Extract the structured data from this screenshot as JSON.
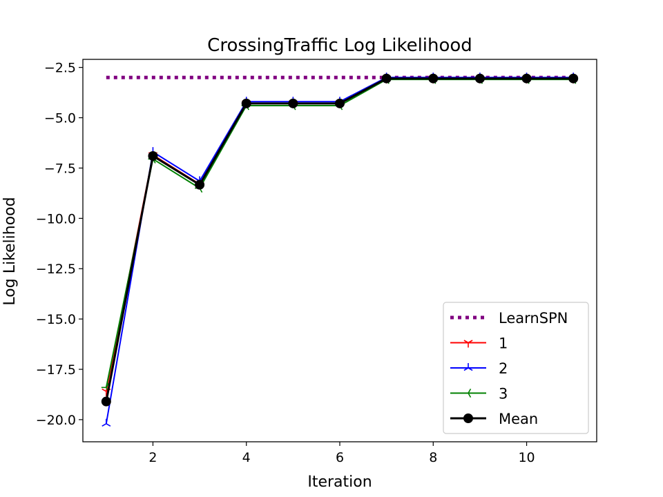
{
  "chart_data": {
    "type": "line",
    "title": "CrossingTraffic Log Likelihood",
    "xlabel": "Iteration",
    "ylabel": "Log Likelihood",
    "xlim": [
      0.5,
      11.5
    ],
    "ylim": [
      -21.1,
      -2.1
    ],
    "xticks": [
      2,
      4,
      6,
      8,
      10
    ],
    "yticks": [
      -2.5,
      -5.0,
      -7.5,
      -10.0,
      -12.5,
      -15.0,
      -17.5,
      -20.0
    ],
    "ytick_labels": [
      "−2.5",
      "−5.0",
      "−7.5",
      "−10.0",
      "−12.5",
      "−15.0",
      "−17.5",
      "−20.0"
    ],
    "x": [
      1,
      2,
      3,
      4,
      5,
      6,
      7,
      8,
      9,
      10,
      11
    ],
    "grid": false,
    "legend_position": "lower-right",
    "series": [
      {
        "name": "LearnSPN",
        "values": [
          -3.0,
          -3.0,
          -3.0,
          -3.0,
          -3.0,
          -3.0,
          -3.0,
          -3.0,
          -3.0,
          -3.0,
          -3.0
        ],
        "color": "#800080",
        "style": "dotted",
        "marker": "none"
      },
      {
        "name": "1",
        "values": [
          -18.6,
          -6.85,
          -8.3,
          -4.28,
          -4.28,
          -4.28,
          -3.05,
          -3.05,
          -3.05,
          -3.05,
          -3.05
        ],
        "color": "#ff0000",
        "style": "solid",
        "marker": "tri_down"
      },
      {
        "name": "2",
        "values": [
          -20.2,
          -6.7,
          -8.15,
          -4.2,
          -4.2,
          -4.2,
          -3.0,
          -3.0,
          -3.0,
          -3.0,
          -3.0
        ],
        "color": "#0000ff",
        "style": "solid",
        "marker": "tri_up"
      },
      {
        "name": "3",
        "values": [
          -18.4,
          -7.05,
          -8.5,
          -4.4,
          -4.4,
          -4.4,
          -3.1,
          -3.1,
          -3.1,
          -3.1,
          -3.1
        ],
        "color": "#008000",
        "style": "solid",
        "marker": "tri_left"
      },
      {
        "name": "Mean",
        "values": [
          -19.1,
          -6.9,
          -8.33,
          -4.29,
          -4.29,
          -4.29,
          -3.05,
          -3.05,
          -3.05,
          -3.05,
          -3.05
        ],
        "color": "#000000",
        "style": "solid",
        "marker": "circle"
      }
    ]
  }
}
